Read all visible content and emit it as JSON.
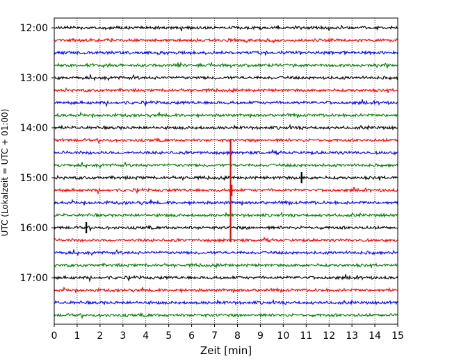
{
  "chart_data": {
    "type": "line",
    "title": "",
    "xlabel": "Zeit  [min]",
    "ylabel": "UTC (Lokalzeit = UTC + 01:00)",
    "xlim": [
      0,
      15
    ],
    "x_ticks": [
      "0",
      "1",
      "2",
      "3",
      "4",
      "5",
      "6",
      "7",
      "8",
      "9",
      "10",
      "11",
      "12",
      "13",
      "14",
      "15"
    ],
    "y_ticks": [
      "12:00",
      "13:00",
      "14:00",
      "15:00",
      "16:00",
      "17:00"
    ],
    "grid": "vertical dotted lines at each minute",
    "trace_interval_minutes": 15,
    "trace_start_times": [
      "12:00",
      "12:15",
      "12:30",
      "12:45",
      "13:00",
      "13:15",
      "13:30",
      "13:45",
      "14:00",
      "14:15",
      "14:30",
      "14:45",
      "15:00",
      "15:15",
      "15:30",
      "15:45",
      "16:00",
      "16:15",
      "16:30",
      "16:45",
      "17:00",
      "17:15",
      "17:30",
      "17:45"
    ],
    "trace_color_cycle": [
      "#000000",
      "#ff0000",
      "#0000ff",
      "#008000"
    ],
    "events": [
      {
        "start_time": "14:15",
        "minute": 7.7,
        "description": "large vertical spike spanning down to ~16:20"
      },
      {
        "start_time": "15:00",
        "minute": 10.8,
        "description": "burst"
      },
      {
        "start_time": "15:15",
        "minute": 7.75,
        "description": "burst"
      },
      {
        "start_time": "16:00",
        "minute": 1.4,
        "description": "spike"
      }
    ]
  }
}
